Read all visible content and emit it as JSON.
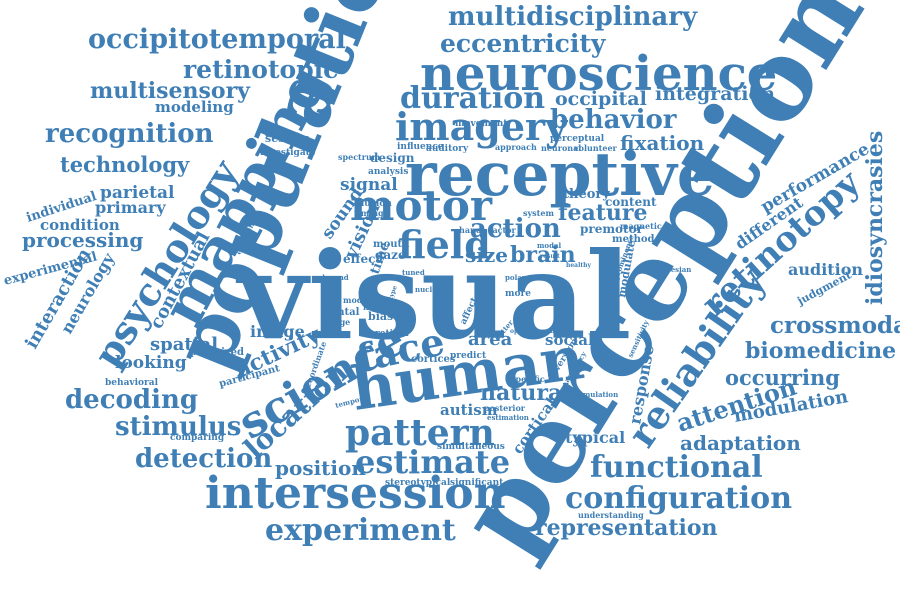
{
  "colors": {
    "word": "#3f7fb5",
    "background": "#ffffff"
  },
  "words": [
    "visual",
    "perception",
    "population",
    "receptive",
    "human",
    "mapping",
    "neuroscience",
    "intersession",
    "science",
    "motor",
    "psychology",
    "field",
    "face",
    "imagery",
    "reliability",
    "retinotopy",
    "pattern",
    "estimate",
    "duration",
    "configuration",
    "functional",
    "experiment",
    "multidisciplinary",
    "occipitotemporal",
    "recognition",
    "location",
    "eccentricity",
    "retinotopic",
    "multisensory",
    "action",
    "behavior",
    "decoding",
    "stimulus",
    "detection",
    "crossmodal",
    "biomedicine",
    "idiosyncrasies",
    "attention",
    "feature",
    "processing",
    "technology",
    "representation",
    "occurring",
    "activity",
    "natural",
    "brain",
    "size",
    "adaptation",
    "modulation",
    "position",
    "occipital",
    "integration",
    "fixation",
    "response",
    "contextual",
    "interaction",
    "neurology",
    "audition",
    "performance",
    "different",
    "area",
    "spatial",
    "looking",
    "image",
    "signal",
    "vision",
    "sound",
    "parietal",
    "primary",
    "condition",
    "individual",
    "experimental",
    "typical",
    "social",
    "autism",
    "cortical",
    "modeling",
    "theory",
    "content",
    "session",
    "investigate",
    "design",
    "analysis",
    "influence",
    "movement",
    "approach",
    "perceptual",
    "neuronal",
    "volunteer",
    "auditory",
    "spectrum",
    "activation",
    "unity",
    "illusion",
    "timing",
    "system",
    "premotor",
    "magnetic",
    "method",
    "hand",
    "factor",
    "modal",
    "gaze",
    "mouth",
    "time",
    "effect",
    "depend",
    "higher",
    "model",
    "wedge",
    "frontal",
    "bias",
    "retinal",
    "cortices",
    "predict",
    "cartesian",
    "sensitivity",
    "specific",
    "inversion",
    "accuracy",
    "posterior",
    "estimation",
    "stimulation",
    "simultaneous",
    "stereotypical",
    "significant",
    "understanding",
    "judgment",
    "perceived",
    "participant",
    "behavioral",
    "comparing",
    "temporal",
    "coordinate",
    "experience",
    "optimal",
    "number",
    "better",
    "more",
    "polar",
    "affect",
    "result",
    "healthy",
    "modulate",
    "prominence",
    "exhibit",
    "level",
    "cross",
    "nuclear",
    "type",
    "tuned",
    "vary",
    "space",
    "visuals"
  ]
}
